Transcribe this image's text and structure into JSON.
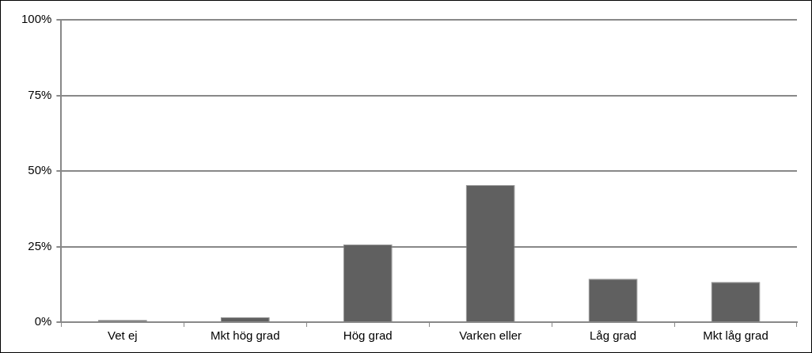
{
  "chart_data": {
    "type": "bar",
    "categories": [
      "Vet ej",
      "Mkt hög grad",
      "Hög grad",
      "Varken eller",
      "Låg grad",
      "Mkt låg grad"
    ],
    "values": [
      0.7,
      1.6,
      25.7,
      45.3,
      14.3,
      13.3
    ],
    "color": "#606060",
    "ylim": [
      0,
      100
    ],
    "yticks": [
      {
        "value": 0,
        "label": "0%"
      },
      {
        "value": 25,
        "label": "25%"
      },
      {
        "value": 50,
        "label": "50%"
      },
      {
        "value": 75,
        "label": "75%"
      },
      {
        "value": 100,
        "label": "100%"
      }
    ],
    "grid": "y"
  }
}
